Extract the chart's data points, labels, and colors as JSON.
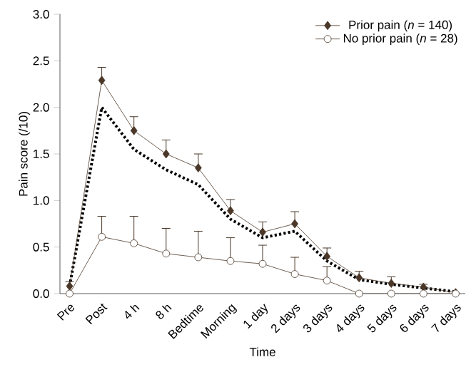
{
  "chart_data": {
    "type": "line",
    "xlabel": "Time",
    "ylabel": "Pain score (/10)",
    "categories": [
      "Pre",
      "Post",
      "4 h",
      "8 h",
      "Bedtime",
      "Morning",
      "1 day",
      "2 days",
      "3 days",
      "4 days",
      "5 days",
      "6 days",
      "7 days"
    ],
    "ylim": [
      0,
      3
    ],
    "yticks": [
      {
        "value": 0,
        "label": "0.0"
      },
      {
        "value": 0.5,
        "label": "0.5"
      },
      {
        "value": 1,
        "label": "1.0"
      },
      {
        "value": 1.5,
        "label": "1.5"
      },
      {
        "value": 2,
        "label": "2.0"
      },
      {
        "value": 2.5,
        "label": "2.5"
      },
      {
        "value": 3,
        "label": "3.0"
      }
    ],
    "legend": "top right",
    "grid": false,
    "series": [
      {
        "color": "#000000",
        "marker": "none",
        "line_style": "dotted",
        "values": [
          0.08,
          2.0,
          1.55,
          1.33,
          1.17,
          0.8,
          0.6,
          0.67,
          0.35,
          0.15,
          0.1,
          0.06,
          0.02
        ]
      },
      {
        "name": "Prior pain (*n* = 140)",
        "color": "#4a3728",
        "marker": "diamond",
        "line_style": "solid",
        "values": [
          0.08,
          2.29,
          1.75,
          1.5,
          1.35,
          0.89,
          0.66,
          0.75,
          0.4,
          0.17,
          0.11,
          0.07,
          0.01
        ],
        "errors": [
          [
            0.08,
            0.13
          ],
          [
            2.29,
            2.43
          ],
          [
            1.75,
            1.9
          ],
          [
            1.5,
            1.65
          ],
          [
            1.35,
            1.5
          ],
          [
            0.89,
            1.01
          ],
          [
            0.66,
            0.77
          ],
          [
            0.75,
            0.88
          ],
          [
            0.4,
            0.49
          ],
          [
            0.17,
            0.24
          ],
          [
            0.11,
            0.18
          ],
          [
            0.07,
            0.1
          ],
          null
        ]
      },
      {
        "name": "No prior pain (*n* = 28)",
        "color": "#4a3728",
        "marker": "circle",
        "line_style": "solid",
        "values": [
          0,
          0.61,
          0.54,
          0.43,
          0.39,
          0.35,
          0.32,
          0.21,
          0.14,
          0,
          0,
          0,
          0
        ],
        "errors": [
          null,
          [
            0.61,
            0.83
          ],
          [
            0.54,
            0.83
          ],
          [
            0.43,
            0.7
          ],
          [
            0.39,
            0.67
          ],
          [
            0.35,
            0.6
          ],
          [
            0.32,
            0.52
          ],
          [
            0.21,
            0.39
          ],
          [
            0.14,
            0.29
          ],
          null,
          null,
          null,
          null
        ]
      }
    ]
  }
}
